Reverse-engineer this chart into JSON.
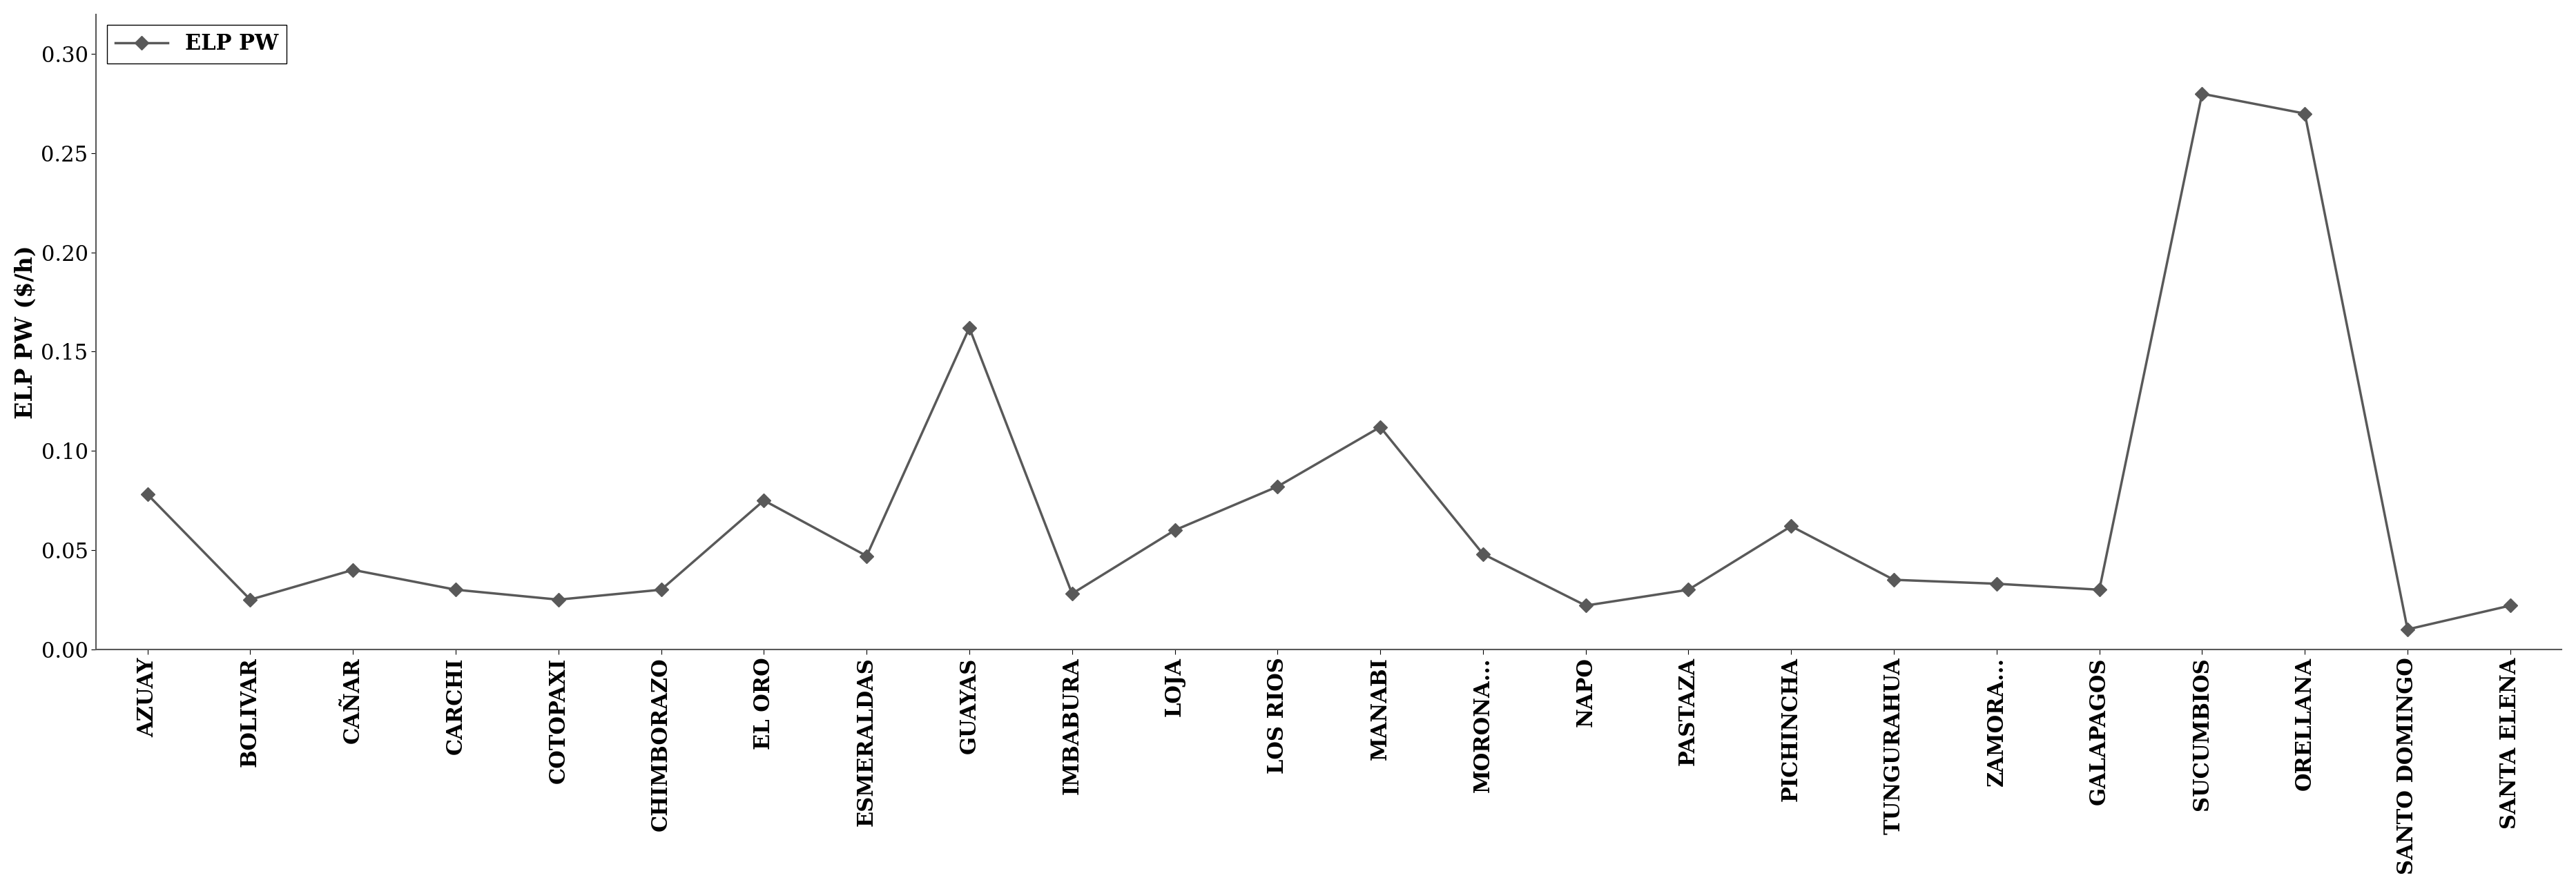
{
  "categories": [
    "AZUAY",
    "BOLIVAR",
    "CAÑAR",
    "CARCHI",
    "COTOPAXI",
    "CHIMBORAZO",
    "EL ORO",
    "ESMERALDAS",
    "GUAYAS",
    "IMBABURA",
    "LOJA",
    "LOS RIOS",
    "MANABI",
    "MORONA...",
    "NAPO",
    "PASTAZA",
    "PICHINCHA",
    "TUNGURAHUA",
    "ZAMORA...",
    "GALAPAGOS",
    "SUCUMBIOS",
    "ORELLANA",
    "SANTO DOMINGO",
    "SANTA ELENA"
  ],
  "values": [
    0.078,
    0.025,
    0.04,
    0.03,
    0.025,
    0.03,
    0.075,
    0.047,
    0.162,
    0.028,
    0.06,
    0.082,
    0.112,
    0.048,
    0.022,
    0.03,
    0.062,
    0.035,
    0.033,
    0.03,
    0.28,
    0.27,
    0.01,
    0.022
  ],
  "line_color": "#595959",
  "marker": "D",
  "marker_size": 10,
  "marker_facecolor": "#595959",
  "ylabel": "ELP PW ($/h)",
  "ylim": [
    0.0,
    0.32
  ],
  "yticks": [
    0.0,
    0.05,
    0.1,
    0.15,
    0.2,
    0.25,
    0.3
  ],
  "legend_label": "ELP PW",
  "tick_fontsize": 22,
  "label_fontsize": 24,
  "legend_fontsize": 22,
  "figure_width": 37.31,
  "figure_height": 12.88,
  "background_color": "#ffffff",
  "line_width": 2.5,
  "font_family": "serif"
}
